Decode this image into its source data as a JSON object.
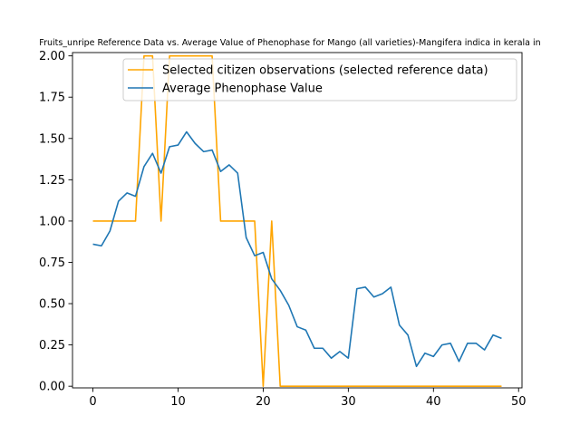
{
  "chart_data": {
    "type": "line",
    "title": "Fruits_unripe Reference Data vs. Average Value of Phenophase for Mango (all varieties)-Mangifera indica in kerala in",
    "xlabel": "",
    "ylabel": "",
    "xlim": [
      -2.4,
      50.4
    ],
    "ylim": [
      -0.01,
      2.02
    ],
    "xticks": [
      0,
      10,
      20,
      30,
      40,
      50
    ],
    "yticks": [
      0.0,
      0.25,
      0.5,
      0.75,
      1.0,
      1.25,
      1.5,
      1.75,
      2.0
    ],
    "ytick_labels": [
      "0.00",
      "0.25",
      "0.50",
      "0.75",
      "1.00",
      "1.25",
      "1.50",
      "1.75",
      "2.00"
    ],
    "grid": false,
    "legend_position": "upper-right",
    "series": [
      {
        "name": "Selected citizen observations (selected reference data)",
        "color": "#ffa500",
        "x": [
          0,
          1,
          2,
          3,
          4,
          5,
          6,
          7,
          8,
          9,
          10,
          11,
          12,
          13,
          14,
          15,
          16,
          17,
          18,
          19,
          20,
          21,
          22,
          23,
          24,
          25,
          26,
          27,
          28,
          29,
          30,
          31,
          32,
          33,
          34,
          35,
          36,
          37,
          38,
          39,
          40,
          41,
          42,
          43,
          44,
          45,
          46,
          47,
          48
        ],
        "y": [
          1,
          1,
          1,
          1,
          1,
          1,
          2,
          2,
          1,
          2,
          2,
          2,
          2,
          2,
          2,
          1,
          1,
          1,
          1,
          1,
          0,
          1,
          0,
          0,
          0,
          0,
          0,
          0,
          0,
          0,
          0,
          0,
          0,
          0,
          0,
          0,
          0,
          0,
          0,
          0,
          0,
          0,
          0,
          0,
          0,
          0,
          0,
          0,
          0
        ]
      },
      {
        "name": "Average Phenophase Value",
        "color": "#1f77b4",
        "x": [
          0,
          1,
          2,
          3,
          4,
          5,
          6,
          7,
          8,
          9,
          10,
          11,
          12,
          13,
          14,
          15,
          16,
          17,
          18,
          19,
          20,
          21,
          22,
          23,
          24,
          25,
          26,
          27,
          28,
          29,
          30,
          31,
          32,
          33,
          34,
          35,
          36,
          37,
          38,
          39,
          40,
          41,
          42,
          43,
          44,
          45,
          46,
          47,
          48
        ],
        "y": [
          0.86,
          0.85,
          0.94,
          1.12,
          1.17,
          1.15,
          1.33,
          1.41,
          1.29,
          1.45,
          1.46,
          1.54,
          1.47,
          1.42,
          1.43,
          1.3,
          1.34,
          1.29,
          0.9,
          0.79,
          0.81,
          0.65,
          0.58,
          0.49,
          0.36,
          0.34,
          0.23,
          0.23,
          0.17,
          0.21,
          0.17,
          0.59,
          0.6,
          0.54,
          0.56,
          0.6,
          0.37,
          0.31,
          0.12,
          0.2,
          0.18,
          0.25,
          0.26,
          0.15,
          0.26,
          0.26,
          0.22,
          0.31,
          0.29
        ]
      }
    ]
  }
}
